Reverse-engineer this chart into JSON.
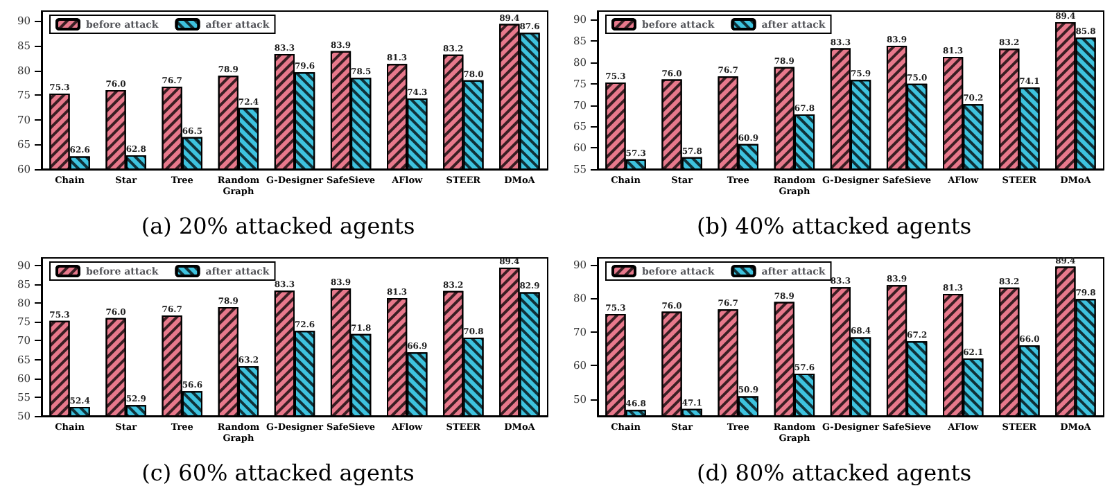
{
  "chart_data": [
    {
      "type": "bar",
      "title": "(a) 20% attacked agents",
      "categories": [
        "Chain",
        "Star",
        "Tree",
        "Random Graph",
        "G-Designer",
        "SafeSieve",
        "AFlow",
        "STEER",
        "DMoA"
      ],
      "series": [
        {
          "name": "before attack",
          "color": "#e8798c",
          "values": [
            75.3,
            76.0,
            76.7,
            78.9,
            83.3,
            83.9,
            81.3,
            83.2,
            89.4
          ],
          "value_labels": [
            "75.3",
            "76.0",
            "76.7",
            "78.9",
            "83.3",
            "83.9",
            "81.3",
            "83.2",
            "89.4"
          ]
        },
        {
          "name": "after attack",
          "color": "#3ec3df",
          "values": [
            62.6,
            62.8,
            66.5,
            72.4,
            79.6,
            78.5,
            74.3,
            78.0,
            87.6
          ],
          "value_labels": [
            "62.6",
            "62.8",
            "66.5",
            "72.4",
            "79.6",
            "78.5",
            "74.3",
            "78.0",
            "87.6"
          ]
        }
      ],
      "ylim": [
        60,
        92
      ],
      "yticks": [
        60,
        65,
        70,
        75,
        80,
        85,
        90
      ],
      "legend": "top left",
      "grid": false
    },
    {
      "type": "bar",
      "title": "(b) 40% attacked agents",
      "categories": [
        "Chain",
        "Star",
        "Tree",
        "Random Graph",
        "G-Designer",
        "SafeSieve",
        "AFlow",
        "STEER",
        "DMoA"
      ],
      "series": [
        {
          "name": "before attack",
          "color": "#e8798c",
          "values": [
            75.3,
            76.0,
            76.7,
            78.9,
            83.3,
            83.9,
            81.3,
            83.2,
            89.4
          ],
          "value_labels": [
            "75.3",
            "76.0",
            "76.7",
            "78.9",
            "83.3",
            "83.9",
            "81.3",
            "83.2",
            "89.4"
          ]
        },
        {
          "name": "after attack",
          "color": "#3ec3df",
          "values": [
            57.3,
            57.8,
            60.9,
            67.8,
            75.9,
            75.0,
            70.2,
            74.1,
            85.8
          ],
          "value_labels": [
            "57.3",
            "57.8",
            "60.9",
            "67.8",
            "75.9",
            "75.0",
            "70.2",
            "74.1",
            "85.8"
          ]
        }
      ],
      "ylim": [
        55,
        92
      ],
      "yticks": [
        55,
        60,
        65,
        70,
        75,
        80,
        85,
        90
      ],
      "legend": "top left",
      "grid": false
    },
    {
      "type": "bar",
      "title": "(c) 60% attacked agents",
      "categories": [
        "Chain",
        "Star",
        "Tree",
        "Random Graph",
        "G-Designer",
        "SafeSieve",
        "AFlow",
        "STEER",
        "DMoA"
      ],
      "series": [
        {
          "name": "before attack",
          "color": "#e8798c",
          "values": [
            75.3,
            76.0,
            76.7,
            78.9,
            83.3,
            83.9,
            81.3,
            83.2,
            89.4
          ],
          "value_labels": [
            "75.3",
            "76.0",
            "76.7",
            "78.9",
            "83.3",
            "83.9",
            "81.3",
            "83.2",
            "89.4"
          ]
        },
        {
          "name": "after attack",
          "color": "#3ec3df",
          "values": [
            52.4,
            52.9,
            56.6,
            63.2,
            72.6,
            71.8,
            66.9,
            70.8,
            82.9
          ],
          "value_labels": [
            "52.4",
            "52.9",
            "56.6",
            "63.2",
            "72.6",
            "71.8",
            "66.9",
            "70.8",
            "82.9"
          ]
        }
      ],
      "ylim": [
        50,
        92
      ],
      "yticks": [
        50,
        55,
        60,
        65,
        70,
        75,
        80,
        85,
        90
      ],
      "legend": "top left",
      "grid": false
    },
    {
      "type": "bar",
      "title": "(d) 80% attacked agents",
      "categories": [
        "Chain",
        "Star",
        "Tree",
        "Random Graph",
        "G-Designer",
        "SafeSieve",
        "AFlow",
        "STEER",
        "DMoA"
      ],
      "series": [
        {
          "name": "before attack",
          "color": "#e8798c",
          "values": [
            75.3,
            76.0,
            76.7,
            78.9,
            83.3,
            83.9,
            81.3,
            83.2,
            89.4
          ],
          "value_labels": [
            "75.3",
            "76.0",
            "76.7",
            "78.9",
            "83.3",
            "83.9",
            "81.3",
            "83.2",
            "89.4"
          ]
        },
        {
          "name": "after attack",
          "color": "#3ec3df",
          "values": [
            46.8,
            47.1,
            50.9,
            57.6,
            68.4,
            67.2,
            62.1,
            66.0,
            79.8
          ],
          "value_labels": [
            "46.8",
            "47.1",
            "50.9",
            "57.6",
            "68.4",
            "67.2",
            "62.1",
            "66.0",
            "79.8"
          ]
        }
      ],
      "ylim": [
        45,
        92
      ],
      "yticks": [
        50,
        60,
        70,
        80,
        90
      ],
      "legend": "top left",
      "grid": false
    }
  ]
}
